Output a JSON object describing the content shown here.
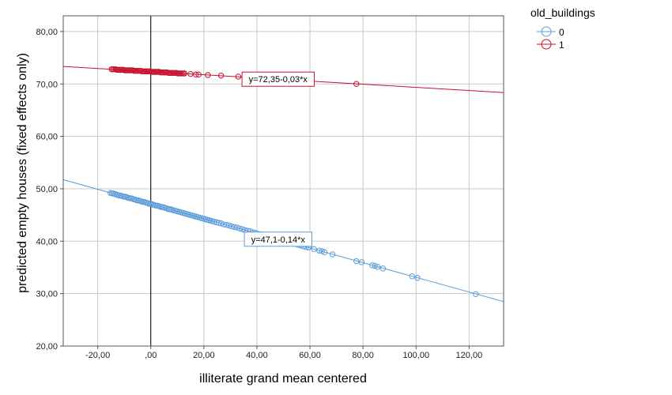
{
  "chart_data": {
    "type": "scatter",
    "xlabel": "illiterate grand mean centered",
    "ylabel": "predicted empty houses (fixed effects only)",
    "xlim": [
      -33,
      133
    ],
    "ylim": [
      20,
      83
    ],
    "x_ticks": [
      -20,
      0,
      20,
      40,
      60,
      80,
      100,
      120
    ],
    "x_tick_labels": [
      "-20,00",
      ",00",
      "20,00",
      "40,00",
      "60,00",
      "80,00",
      "100,00",
      "120,00"
    ],
    "y_ticks": [
      20,
      30,
      40,
      50,
      60,
      70,
      80
    ],
    "y_tick_labels": [
      "20,00",
      "30,00",
      "40,00",
      "50,00",
      "60,00",
      "70,00",
      "80,00"
    ],
    "grid": true,
    "reference_line_x": 0,
    "legend": {
      "title": "old_buildings",
      "placement": "right-top",
      "entries": [
        {
          "label": "0",
          "color": "#5b9bd9"
        },
        {
          "label": "1",
          "color": "#c8102e"
        }
      ]
    },
    "series": [
      {
        "name": "0",
        "color": "#5b9bd9",
        "fit": {
          "intercept": 47.1,
          "slope": -0.14,
          "label": "y=47,1-0,14*x",
          "label_at_x": 48
        },
        "x": [
          -15.2,
          -14.6,
          -14.1,
          -13.5,
          -13.0,
          -12.4,
          -11.9,
          -11.3,
          -10.8,
          -10.2,
          -9.7,
          -9.1,
          -8.6,
          -8.0,
          -7.5,
          -6.9,
          -6.4,
          -5.8,
          -5.3,
          -4.7,
          -4.2,
          -3.6,
          -3.1,
          -2.5,
          -2.0,
          -1.4,
          -0.9,
          -0.3,
          0.2,
          0.8,
          1.3,
          1.9,
          2.4,
          3.0,
          3.5,
          4.1,
          4.6,
          5.2,
          5.7,
          6.3,
          6.8,
          7.4,
          8.0,
          8.6,
          9.3,
          10.0,
          10.7,
          11.4,
          12.1,
          12.8,
          13.5,
          14.2,
          14.9,
          15.6,
          16.3,
          17.0,
          17.7,
          18.4,
          19.1,
          19.8,
          20.5,
          21.2,
          21.9,
          22.6,
          23.3,
          24.0,
          24.8,
          25.6,
          26.5,
          27.5,
          28.5,
          29.5,
          30.5,
          31.5,
          32.5,
          33.5,
          34.5,
          35.5,
          36.5,
          37.5,
          38.5,
          39.5,
          40.5,
          41.5,
          42.5,
          43.5,
          44.5,
          45.5,
          46.5,
          47.5,
          48.5,
          49.5,
          50.5,
          51.5,
          52.5,
          53.5,
          54.5,
          55.5,
          56.5,
          57.5,
          58.5,
          59.5,
          61.5,
          63.5,
          64.5,
          65.5,
          68.5,
          77.5,
          79.5,
          83.5,
          84.5,
          85.5,
          87.5,
          98.5,
          100.5,
          122.5
        ],
        "y": [
          49.2,
          49.1,
          49.1,
          49.0,
          48.9,
          48.8,
          48.7,
          48.7,
          48.6,
          48.5,
          48.5,
          48.4,
          48.3,
          48.2,
          48.2,
          48.1,
          48.0,
          47.9,
          47.8,
          47.8,
          47.7,
          47.6,
          47.5,
          47.5,
          47.4,
          47.3,
          47.2,
          47.1,
          47.1,
          47.0,
          46.9,
          46.8,
          46.8,
          46.7,
          46.6,
          46.5,
          46.5,
          46.4,
          46.3,
          46.2,
          46.1,
          46.1,
          46.0,
          45.9,
          45.8,
          45.7,
          45.6,
          45.5,
          45.4,
          45.3,
          45.2,
          45.1,
          45.0,
          44.9,
          44.8,
          44.7,
          44.6,
          44.5,
          44.4,
          44.3,
          44.2,
          44.1,
          44.0,
          43.9,
          43.8,
          43.7,
          43.6,
          43.5,
          43.4,
          43.2,
          43.1,
          43.0,
          42.8,
          42.7,
          42.6,
          42.4,
          42.3,
          42.1,
          42.0,
          41.9,
          41.7,
          41.6,
          41.4,
          41.3,
          41.2,
          41.0,
          40.9,
          40.7,
          40.6,
          40.5,
          40.3,
          40.2,
          40.0,
          39.9,
          39.8,
          39.6,
          39.5,
          39.3,
          39.2,
          39.0,
          38.9,
          38.8,
          38.5,
          38.2,
          38.1,
          37.9,
          37.5,
          36.2,
          36.0,
          35.4,
          35.3,
          35.1,
          34.8,
          33.3,
          33.0,
          29.9
        ]
      },
      {
        "name": "1",
        "color": "#c8102e",
        "fit": {
          "intercept": 72.35,
          "slope": -0.03,
          "label": "y=72,35-0,03*x",
          "label_at_x": 48
        },
        "x": [
          -14.8,
          -14.3,
          -13.8,
          -13.3,
          -12.8,
          -12.3,
          -11.8,
          -11.3,
          -10.8,
          -10.3,
          -9.8,
          -9.3,
          -8.8,
          -8.3,
          -7.8,
          -7.3,
          -6.8,
          -6.3,
          -5.8,
          -5.3,
          -4.8,
          -4.3,
          -3.8,
          -3.3,
          -2.8,
          -2.3,
          -1.8,
          -1.3,
          -0.8,
          -0.3,
          0.2,
          0.7,
          1.2,
          1.7,
          2.2,
          2.7,
          3.2,
          3.7,
          4.2,
          4.7,
          5.2,
          5.7,
          6.2,
          6.7,
          7.2,
          7.7,
          8.2,
          8.7,
          9.2,
          9.7,
          10.2,
          10.7,
          11.2,
          11.7,
          12.2,
          12.7,
          15.0,
          17.0,
          18.0,
          21.5,
          26.5,
          33.0,
          77.5
        ],
        "y": [
          72.8,
          72.8,
          72.8,
          72.8,
          72.7,
          72.7,
          72.7,
          72.7,
          72.7,
          72.7,
          72.6,
          72.6,
          72.6,
          72.6,
          72.6,
          72.6,
          72.6,
          72.5,
          72.5,
          72.5,
          72.5,
          72.5,
          72.5,
          72.4,
          72.4,
          72.4,
          72.4,
          72.4,
          72.4,
          72.4,
          72.3,
          72.3,
          72.3,
          72.3,
          72.3,
          72.3,
          72.3,
          72.2,
          72.2,
          72.2,
          72.2,
          72.2,
          72.2,
          72.1,
          72.1,
          72.1,
          72.1,
          72.1,
          72.1,
          72.1,
          72.0,
          72.0,
          72.0,
          72.0,
          72.0,
          72.0,
          71.9,
          71.8,
          71.8,
          71.7,
          71.6,
          71.4,
          70.0
        ]
      }
    ]
  }
}
